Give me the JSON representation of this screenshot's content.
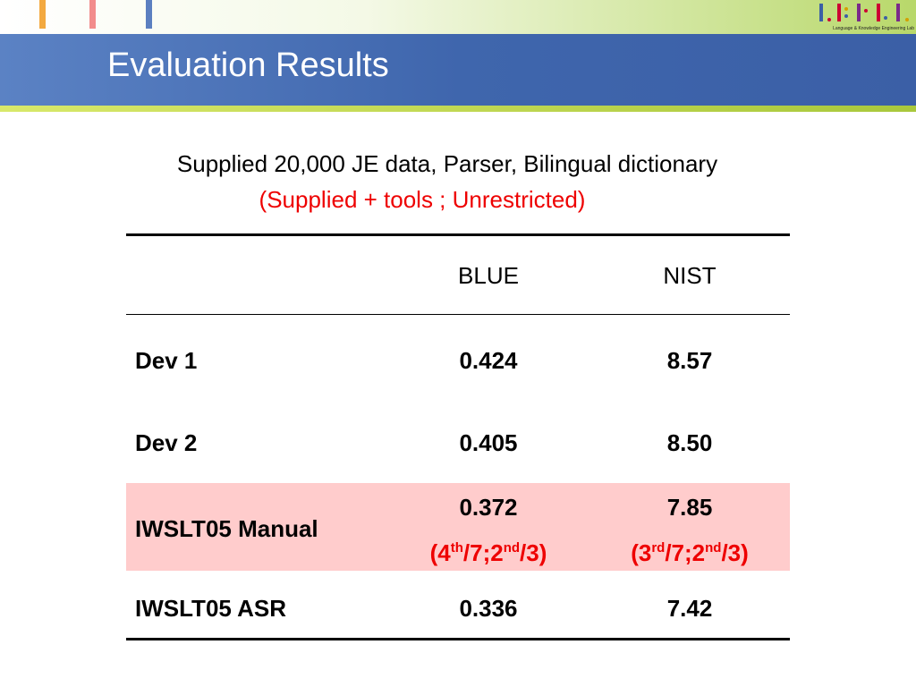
{
  "header": {
    "title": "Evaluation Results",
    "logo_caption": "Language & Knowledge Engineering Lab"
  },
  "subtitle": [
    "Supplied 20,000 JE data, Parser, Bilingual dictionary",
    "(Supplied + tools ; Unrestricted)"
  ],
  "table": {
    "columns": [
      "BLUE",
      "NIST"
    ],
    "rows": [
      {
        "label": "Dev 1",
        "values": [
          "0.424",
          "8.57"
        ]
      },
      {
        "label": "Dev 2",
        "values": [
          "0.405",
          "8.50"
        ]
      },
      {
        "label": "IWSLT05 Manual",
        "values": [
          "0.372",
          "7.85"
        ],
        "ranks": [
          [
            {
              "text": "(4",
              "sup": "th"
            },
            {
              "text": "/7;2",
              "sup": "nd"
            },
            {
              "text": "/3)"
            }
          ],
          [
            {
              "text": "(3",
              "sup": "rd"
            },
            {
              "text": "/7;2",
              "sup": "nd"
            },
            {
              "text": "/3)"
            }
          ]
        ]
      },
      {
        "label": "IWSLT05 ASR",
        "values": [
          "0.336",
          "7.42"
        ]
      }
    ]
  }
}
